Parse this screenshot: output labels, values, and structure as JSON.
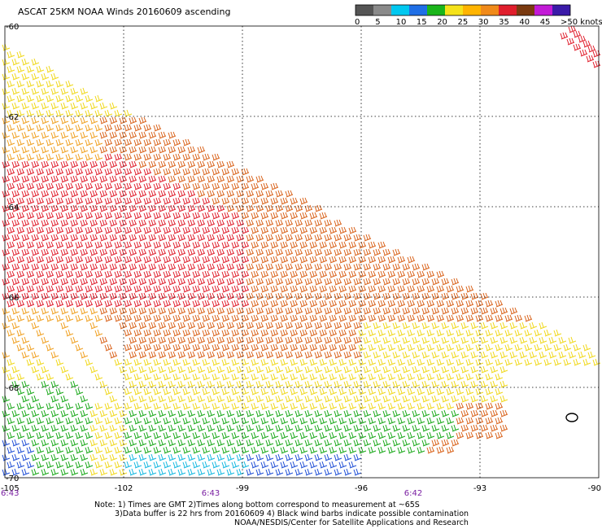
{
  "title": "ASCAT 25KM NOAA Winds 20160609 ascending",
  "legend": {
    "labels": [
      "0",
      "5",
      "10",
      "15",
      "20",
      "25",
      "30",
      "35",
      "40",
      "45",
      ">50 knots"
    ],
    "colors": [
      "#555555",
      "#8a8a8a",
      "#00c8f0",
      "#1f6fe6",
      "#1ab51a",
      "#f5e21a",
      "#ffb400",
      "#f08a1a",
      "#e01e2c",
      "#7a3a10",
      "#c21ad6",
      "#3a1aa8"
    ]
  },
  "map": {
    "lat_ticks": [
      "-60",
      "-62",
      "-64",
      "-66",
      "-68",
      "-70"
    ],
    "lon_ticks": [
      "-105",
      "-102",
      "-99",
      "-96",
      "-93",
      "-90"
    ],
    "time_labels": [
      "6:43",
      "6:43",
      "6:42"
    ],
    "grid": true,
    "lon_range": [
      -105,
      -90
    ],
    "lat_range": [
      -70,
      -60
    ],
    "wind_barb_colors": {
      "yellow": "#f0d81a",
      "light_orange": "#f0a020",
      "orange": "#d9621a",
      "red": "#e01e2c",
      "green": "#18a818",
      "blue": "#1f4fd6",
      "cyan": "#12b8e0"
    }
  },
  "footer": {
    "line1": "Note: 1) Times are GMT 2)Times along bottom correspond to measurement at ~65S",
    "line2": "3)Data buffer is 22 hrs from 20160609 4) Black wind barbs indicate possible contamination",
    "line3": "NOAA/NESDIS/Center for Satellite Applications and Research"
  }
}
